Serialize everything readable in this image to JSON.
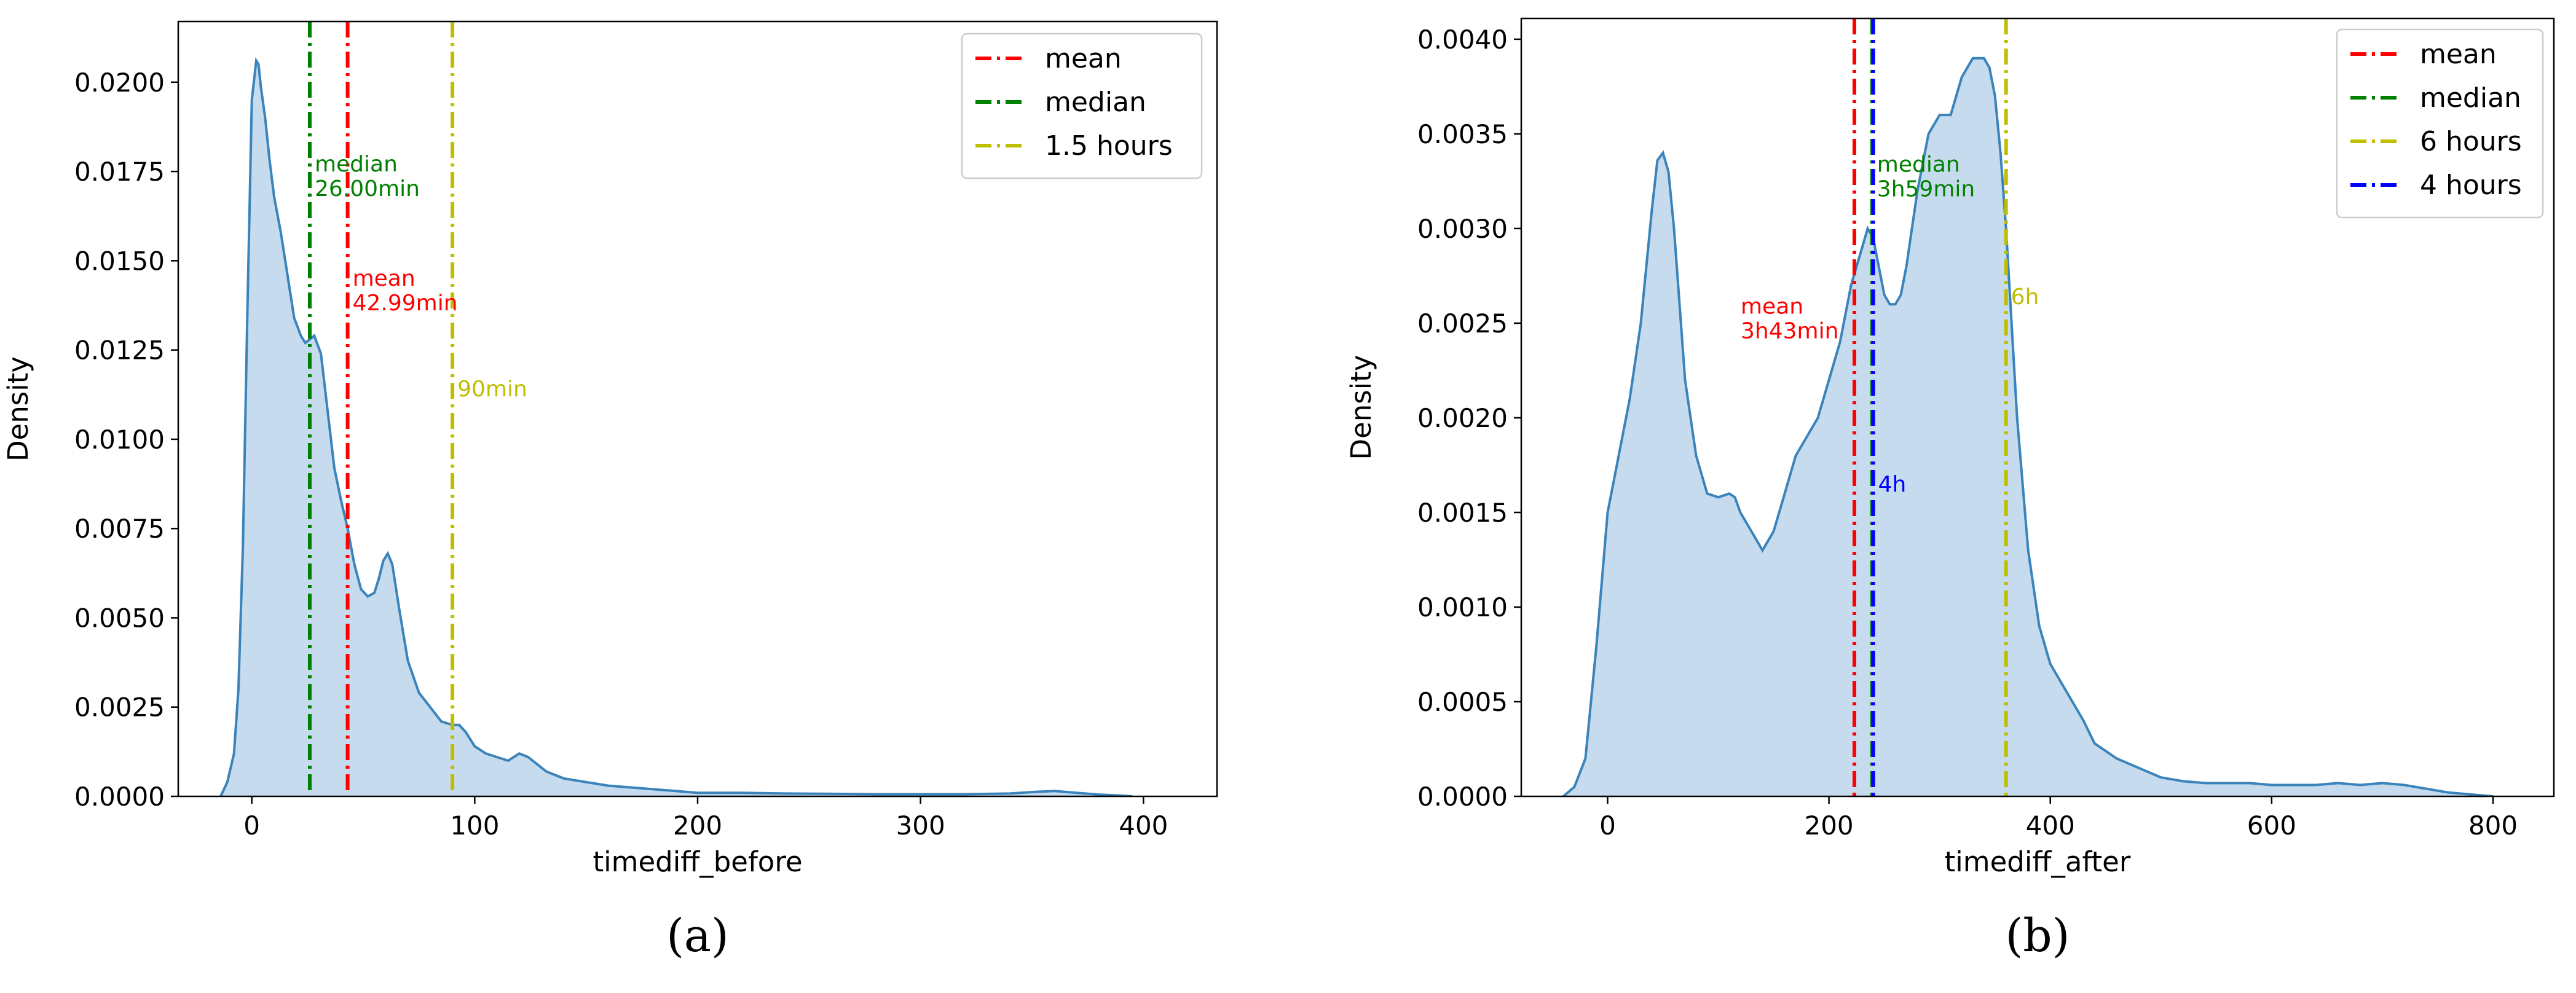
{
  "chart_data": [
    {
      "type": "area",
      "caption": "(a)",
      "xlabel": "timediff_before",
      "ylabel": "Density",
      "xlim": [
        -33,
        433
      ],
      "ylim": [
        0,
        0.0217
      ],
      "xticks": [
        0,
        100,
        200,
        300,
        400
      ],
      "yticks": [
        0.0,
        0.0025,
        0.005,
        0.0075,
        0.01,
        0.0125,
        0.015,
        0.0175,
        0.02
      ],
      "ytick_labels": [
        "0.0000",
        "0.0025",
        "0.0050",
        "0.0075",
        "0.0100",
        "0.0125",
        "0.0150",
        "0.0175",
        "0.0200"
      ],
      "legend_position": "top-right",
      "fill_color": "#c6dbed",
      "line_color": "#3a83bb",
      "series": [
        {
          "name": "density",
          "x": [
            -14,
            -11,
            -8,
            -6,
            -4,
            -2,
            0,
            2,
            3,
            4,
            6,
            8,
            10,
            13,
            16,
            19,
            22,
            24,
            26,
            28,
            31,
            34,
            37,
            40,
            43,
            46,
            49,
            52,
            55,
            57,
            59,
            61,
            63,
            66,
            70,
            75,
            80,
            85,
            90,
            93,
            96,
            100,
            105,
            110,
            115,
            120,
            124,
            128,
            132,
            136,
            140,
            150,
            160,
            170,
            180,
            190,
            200,
            220,
            240,
            260,
            280,
            300,
            320,
            340,
            350,
            360,
            370,
            380,
            390,
            395
          ],
          "y": [
            0.0,
            0.0004,
            0.0012,
            0.003,
            0.007,
            0.0135,
            0.0195,
            0.0206,
            0.0205,
            0.0199,
            0.019,
            0.0178,
            0.0168,
            0.0158,
            0.0146,
            0.0134,
            0.0129,
            0.0127,
            0.0128,
            0.0129,
            0.0124,
            0.0108,
            0.0092,
            0.0083,
            0.0075,
            0.0065,
            0.0058,
            0.0056,
            0.0057,
            0.0061,
            0.0066,
            0.0068,
            0.0065,
            0.0053,
            0.0038,
            0.0029,
            0.0025,
            0.0021,
            0.002,
            0.002,
            0.0018,
            0.0014,
            0.0012,
            0.0011,
            0.001,
            0.0012,
            0.0011,
            0.0009,
            0.0007,
            0.0006,
            0.0005,
            0.0004,
            0.0003,
            0.00025,
            0.0002,
            0.00015,
            0.0001,
            0.0001,
            8e-05,
            7e-05,
            6e-05,
            6e-05,
            6e-05,
            8e-05,
            0.00012,
            0.00015,
            0.0001,
            5e-05,
            2e-05,
            0.0
          ]
        }
      ],
      "vlines": [
        {
          "key": "mean",
          "x": 42.99,
          "color": "#ff0000",
          "label_lines": [
            "mean",
            "42.99min"
          ],
          "label_y": 0.0143
        },
        {
          "key": "median",
          "x": 26.0,
          "color": "#008000",
          "label_lines": [
            "median",
            "26.00min"
          ],
          "label_y": 0.0175
        },
        {
          "key": "hours",
          "x": 90,
          "color": "#bfbf00",
          "label_lines": [
            "90min"
          ],
          "label_y": 0.0112
        }
      ],
      "legend": [
        {
          "label": "mean",
          "color": "#ff0000"
        },
        {
          "label": "median",
          "color": "#008000"
        },
        {
          "label": "1.5 hours",
          "color": "#bfbf00"
        }
      ]
    },
    {
      "type": "area",
      "caption": "(b)",
      "xlabel": "timediff_after",
      "ylabel": "Density",
      "xlim": [
        -78,
        855
      ],
      "ylim": [
        0,
        0.00411
      ],
      "xticks": [
        0,
        200,
        400,
        600,
        800
      ],
      "yticks": [
        0.0,
        0.0005,
        0.001,
        0.0015,
        0.002,
        0.0025,
        0.003,
        0.0035,
        0.004
      ],
      "ytick_labels": [
        "0.0000",
        "0.0005",
        "0.0010",
        "0.0015",
        "0.0020",
        "0.0025",
        "0.0030",
        "0.0035",
        "0.0040"
      ],
      "legend_position": "top-right",
      "fill_color": "#c6dbed",
      "line_color": "#3a83bb",
      "series": [
        {
          "name": "density",
          "x": [
            -40,
            -30,
            -20,
            -10,
            0,
            10,
            20,
            30,
            40,
            45,
            50,
            55,
            60,
            65,
            70,
            80,
            90,
            100,
            110,
            115,
            120,
            130,
            140,
            150,
            160,
            170,
            180,
            190,
            200,
            210,
            220,
            230,
            235,
            240,
            245,
            250,
            255,
            260,
            265,
            270,
            280,
            290,
            300,
            310,
            320,
            330,
            340,
            345,
            350,
            355,
            360,
            370,
            380,
            390,
            400,
            410,
            420,
            430,
            440,
            460,
            480,
            500,
            520,
            540,
            560,
            580,
            600,
            620,
            640,
            660,
            680,
            700,
            720,
            740,
            760,
            780,
            800
          ],
          "y": [
            0.0,
            5e-05,
            0.0002,
            0.0008,
            0.0015,
            0.0018,
            0.0021,
            0.0025,
            0.0031,
            0.00336,
            0.0034,
            0.0033,
            0.003,
            0.0026,
            0.0022,
            0.0018,
            0.0016,
            0.00158,
            0.0016,
            0.00158,
            0.0015,
            0.0014,
            0.0013,
            0.0014,
            0.0016,
            0.0018,
            0.0019,
            0.002,
            0.0022,
            0.0024,
            0.0027,
            0.0029,
            0.003,
            0.00295,
            0.0028,
            0.00265,
            0.0026,
            0.0026,
            0.00265,
            0.0028,
            0.0032,
            0.0035,
            0.0036,
            0.0036,
            0.0038,
            0.0039,
            0.0039,
            0.00385,
            0.0037,
            0.0034,
            0.003,
            0.002,
            0.0013,
            0.0009,
            0.0007,
            0.0006,
            0.0005,
            0.0004,
            0.00028,
            0.0002,
            0.00015,
            0.0001,
            8e-05,
            7e-05,
            7e-05,
            7e-05,
            6e-05,
            6e-05,
            6e-05,
            7e-05,
            6e-05,
            7e-05,
            6e-05,
            4e-05,
            2e-05,
            1e-05,
            0.0
          ]
        }
      ],
      "vlines": [
        {
          "key": "mean",
          "x": 223,
          "color": "#ff0000",
          "label_lines": [
            "mean",
            "3h43min"
          ],
          "label_y": 0.00255,
          "label_side": "left"
        },
        {
          "key": "median",
          "x": 239,
          "color": "#008000",
          "label_lines": [
            "median",
            "3h59min"
          ],
          "label_y": 0.0033
        },
        {
          "key": "hours6",
          "x": 360,
          "color": "#bfbf00",
          "label_lines": [
            "6h"
          ],
          "label_y": 0.0026
        },
        {
          "key": "hours4",
          "x": 240,
          "color": "#0000ff",
          "label_lines": [
            "4h"
          ],
          "label_y": 0.00161
        }
      ],
      "legend": [
        {
          "label": "mean",
          "color": "#ff0000"
        },
        {
          "label": "median",
          "color": "#008000"
        },
        {
          "label": "6 hours",
          "color": "#bfbf00"
        },
        {
          "label": "4 hours",
          "color": "#0000ff"
        }
      ]
    }
  ]
}
